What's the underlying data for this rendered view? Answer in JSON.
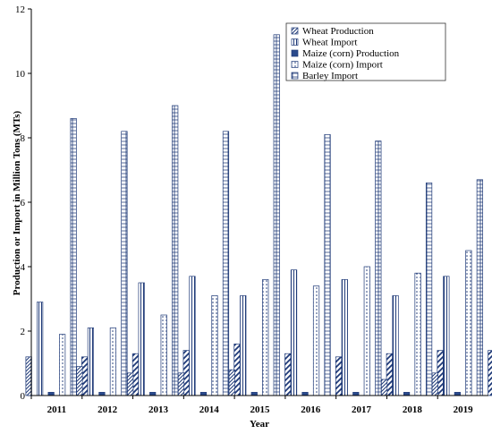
{
  "chart_data": {
    "type": "bar",
    "xlabel": "Year",
    "ylabel": "Production or Import in Million Tons (MTs)",
    "ylim": [
      0,
      12
    ],
    "yticks": [
      0,
      2,
      4,
      6,
      8,
      10,
      12
    ],
    "grid": false,
    "legend_position": "top-right",
    "categories": [
      "2011",
      "2012",
      "2013",
      "2014",
      "2015",
      "2016",
      "2017",
      "2018",
      "2019"
    ],
    "series": [
      {
        "name": "Wheat  Production",
        "pattern": "diagonal",
        "color": "#1f3a78",
        "values": [
          1.2,
          0.9,
          0.7,
          0.7,
          0.8,
          0,
          0,
          0.5,
          0.7
        ]
      },
      {
        "name": "Wheat  Import",
        "pattern": "vertical",
        "color": "#1f3a78",
        "values": [
          2.9,
          2.1,
          3.5,
          3.7,
          3.1,
          3.9,
          3.6,
          3.1,
          3.7
        ]
      },
      {
        "name": "Maize (corn) Production",
        "pattern": "solid",
        "color": "#1f3a78",
        "values": [
          0.1,
          0.1,
          0.1,
          0.1,
          0.1,
          0.1,
          0.1,
          0.1,
          0.1
        ]
      },
      {
        "name": "Maize (corn) Import",
        "pattern": "dots",
        "color": "#1f3a78",
        "values": [
          1.9,
          2.1,
          2.5,
          3.1,
          3.6,
          3.4,
          4.0,
          3.8,
          4.5
        ]
      },
      {
        "name": "Barley  Import",
        "pattern": "grid",
        "color": "#1f3a78",
        "values": [
          8.6,
          8.2,
          9.0,
          8.2,
          11.2,
          8.1,
          7.9,
          6.6,
          6.7
        ]
      },
      {
        "name": "",
        "pattern": "wide-diagonal",
        "color": "#1f3a78",
        "values": [
          1.2,
          1.3,
          1.4,
          1.6,
          1.3,
          1.2,
          1.3,
          1.4,
          1.4
        ]
      }
    ]
  }
}
